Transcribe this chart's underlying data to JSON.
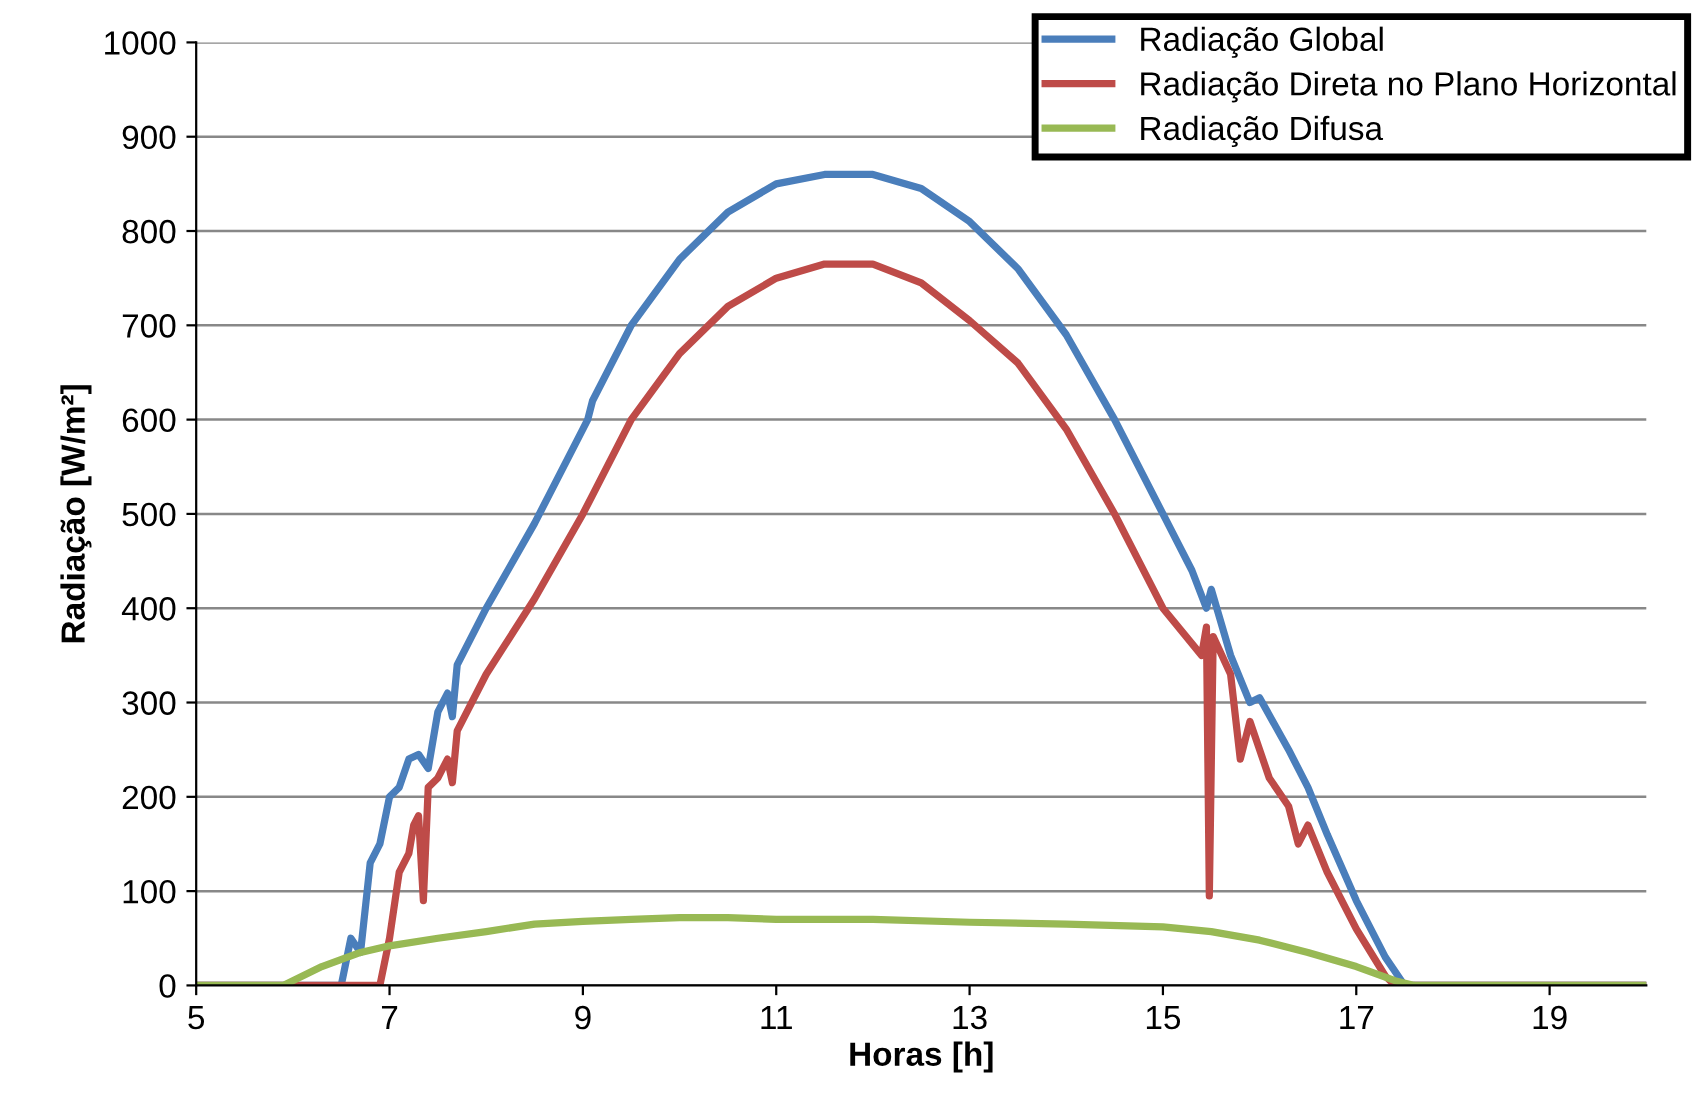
{
  "chart_data": {
    "type": "line",
    "xlabel": "Horas [h]",
    "ylabel": "Radiação [W/m²]",
    "xlim": [
      5,
      20
    ],
    "xticks": [
      5,
      7,
      9,
      11,
      13,
      15,
      17,
      19
    ],
    "ylim": [
      0,
      1000
    ],
    "yticks": [
      0,
      100,
      200,
      300,
      400,
      500,
      600,
      700,
      800,
      900,
      1000
    ],
    "grid": "y",
    "legend": "top right",
    "marker": "none",
    "line_style": "solid",
    "series": [
      {
        "name": "Radiação Global",
        "color": "#4a7ebb",
        "x": [
          5,
          6.5,
          6.6,
          6.7,
          6.8,
          6.9,
          7.0,
          7.1,
          7.2,
          7.3,
          7.4,
          7.5,
          7.6,
          7.65,
          7.7,
          8.0,
          8.5,
          9.0,
          9.05,
          9.1,
          9.5,
          10,
          10.5,
          11,
          11.5,
          12,
          12.5,
          13,
          13.5,
          14,
          14.5,
          15,
          15.3,
          15.45,
          15.5,
          15.7,
          15.9,
          16.0,
          16.3,
          16.5,
          16.7,
          17,
          17.3,
          17.5,
          20
        ],
        "values": [
          0,
          0,
          50,
          35,
          130,
          150,
          200,
          210,
          240,
          245,
          230,
          290,
          310,
          285,
          340,
          400,
          490,
          590,
          600,
          620,
          700,
          770,
          820,
          850,
          860,
          860,
          845,
          810,
          760,
          690,
          600,
          500,
          440,
          400,
          420,
          350,
          300,
          305,
          250,
          210,
          160,
          90,
          30,
          0,
          0
        ]
      },
      {
        "name": "Radiação Direta no Plano Horizontal",
        "color": "#be4b48",
        "x": [
          5,
          6.9,
          7.0,
          7.1,
          7.2,
          7.25,
          7.3,
          7.35,
          7.4,
          7.5,
          7.6,
          7.65,
          7.7,
          8.0,
          8.5,
          9.0,
          9.1,
          9.5,
          10,
          10.5,
          11,
          11.5,
          12,
          12.5,
          13,
          13.5,
          14,
          14.5,
          15,
          15.4,
          15.45,
          15.48,
          15.52,
          15.7,
          15.8,
          15.9,
          16.1,
          16.3,
          16.4,
          16.5,
          16.7,
          17,
          17.3,
          17.4,
          20
        ],
        "values": [
          0,
          0,
          50,
          120,
          140,
          170,
          180,
          90,
          210,
          220,
          240,
          215,
          270,
          330,
          410,
          500,
          520,
          600,
          670,
          720,
          750,
          765,
          765,
          745,
          705,
          660,
          590,
          500,
          400,
          350,
          380,
          95,
          370,
          330,
          240,
          280,
          220,
          190,
          150,
          170,
          120,
          60,
          10,
          0,
          0
        ]
      },
      {
        "name": "Radiação Difusa",
        "color": "#98b954",
        "x": [
          5,
          5.9,
          6.3,
          6.7,
          7,
          7.5,
          8,
          8.5,
          9,
          9.5,
          10,
          10.5,
          11,
          12,
          13,
          14,
          15,
          15.5,
          16,
          16.5,
          17,
          17.4,
          17.6,
          20
        ],
        "values": [
          0,
          0,
          20,
          35,
          42,
          50,
          57,
          65,
          68,
          70,
          72,
          72,
          70,
          70,
          67,
          65,
          62,
          57,
          48,
          35,
          20,
          5,
          0,
          0
        ]
      }
    ]
  }
}
